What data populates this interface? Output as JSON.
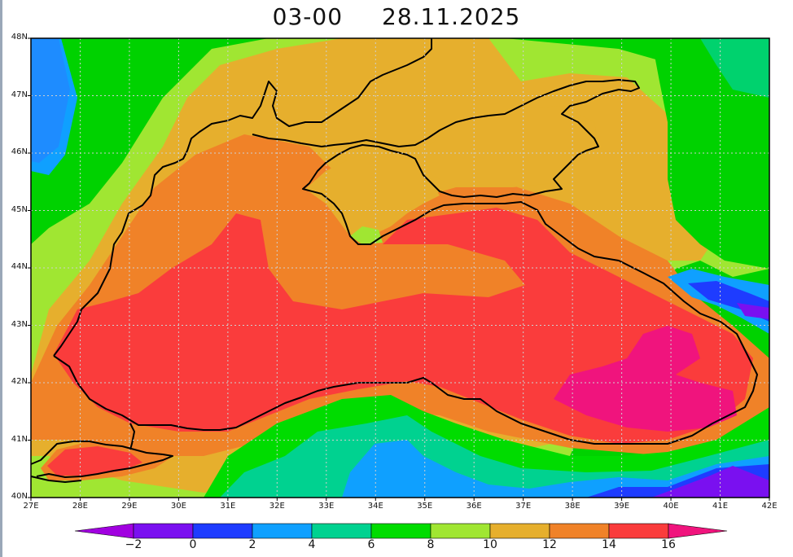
{
  "title": {
    "hour": "03-00",
    "date": "28.11.2025"
  },
  "lat_labels": [
    "48N",
    "47N",
    "46N",
    "45N",
    "44N",
    "43N",
    "42N",
    "41N",
    "40N"
  ],
  "lon_labels": [
    "27E",
    "28E",
    "29E",
    "30E",
    "31E",
    "32E",
    "33E",
    "34E",
    "35E",
    "36E",
    "37E",
    "38E",
    "39E",
    "40E",
    "41E",
    "42E"
  ],
  "colorbar": {
    "labels": [
      "-2",
      "0",
      "2",
      "4",
      "6",
      "8",
      "10",
      "12",
      "14",
      "16"
    ],
    "colors": [
      "#a100e0",
      "#7a10f0",
      "#1e3cff",
      "#0fa0ff",
      "#00d290",
      "#00dc00",
      "#a0e632",
      "#e6af2d",
      "#f08228",
      "#fa3c3c",
      "#f0147d"
    ]
  },
  "colors": {
    "land_far": "#00d26e",
    "open_sea_cool": "#1e8cff",
    "coast_outline": "#000000"
  }
}
